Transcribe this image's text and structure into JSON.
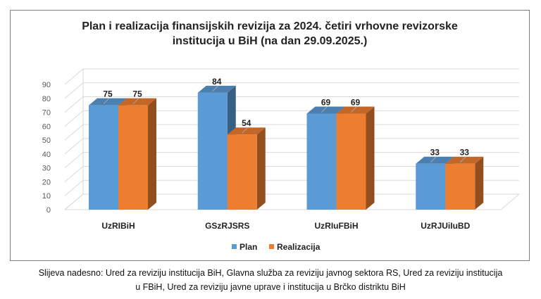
{
  "chart_data": {
    "type": "bar",
    "title_line1": "Plan i realizacija finansijskih revizija za 2024. četiri vrhovne revizorske",
    "title_line2": "institucija u BiH (na dan 29.09.2025.)",
    "categories": [
      "UzRIBiH",
      "GSzRJSRS",
      "UzRIuFBiH",
      "UzRJUiIuBD"
    ],
    "series": [
      {
        "name": "Plan",
        "values": [
          75,
          84,
          69,
          33
        ],
        "color": "#5b9bd5"
      },
      {
        "name": "Realizacija",
        "values": [
          75,
          54,
          69,
          33
        ],
        "color": "#ed7d31"
      }
    ],
    "ylim": [
      0,
      90
    ],
    "yticks": [
      "0",
      "10",
      "20",
      "30",
      "40",
      "50",
      "60",
      "70",
      "80",
      "90"
    ],
    "grid": true,
    "legend_position": "bottom"
  },
  "caption_line1": "Slijeva nadesno: Ured za reviziju institucija BiH, Glavna služba za reviziju javnog sektora RS, Ured za reviziju institucija",
  "caption_line2": "u FBiH, Ured za reviziju javne uprave i institucija u Brčko distriktu BiH"
}
